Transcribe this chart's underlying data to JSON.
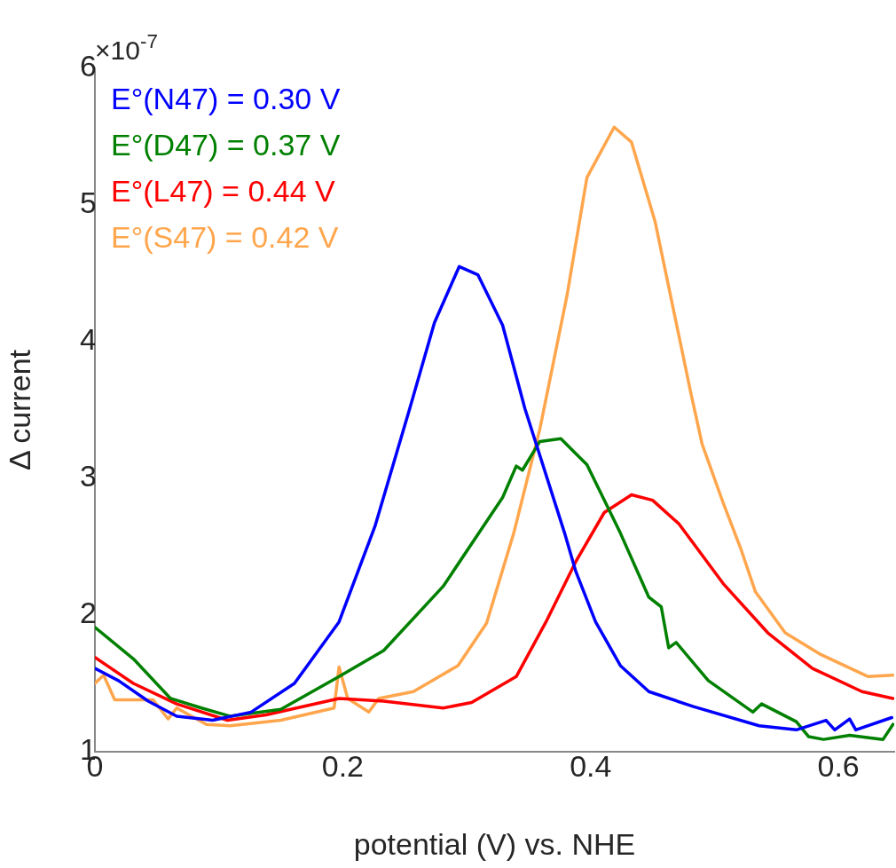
{
  "chart_data": {
    "type": "line",
    "xlabel": "potential (V) vs. NHE",
    "ylabel": "Δ current",
    "xlim": [
      0,
      0.645
    ],
    "xticks": [
      {
        "value": 0,
        "label": "0"
      },
      0.2,
      0.4,
      0.6
    ],
    "ylim": [
      1,
      6
    ],
    "yticks": [
      1,
      2,
      3,
      4,
      5,
      6
    ],
    "grid": false,
    "legend": "top left",
    "marker": "none",
    "line_style": "solid",
    "annotations": [
      "×10$^{-7}$"
    ],
    "series": [
      {
        "name": "E°(N47) = 0.30 V",
        "color": "#0000ff",
        "x": [
          0,
          0.019,
          0.043,
          0.066,
          0.095,
          0.126,
          0.161,
          0.197,
          0.226,
          0.254,
          0.274,
          0.294,
          0.309,
          0.329,
          0.347,
          0.379,
          0.388,
          0.404,
          0.424,
          0.447,
          0.483,
          0.536,
          0.566,
          0.59,
          0.597,
          0.609,
          0.614,
          0.643
        ],
        "values": [
          1.61,
          1.52,
          1.37,
          1.26,
          1.23,
          1.29,
          1.5,
          1.95,
          2.65,
          3.51,
          4.14,
          4.55,
          4.49,
          4.12,
          3.51,
          2.6,
          2.32,
          1.95,
          1.63,
          1.44,
          1.33,
          1.19,
          1.16,
          1.23,
          1.16,
          1.24,
          1.16,
          1.25
        ]
      },
      {
        "name": "E°(D47) = 0.37 V",
        "color": "#008000",
        "x": [
          0,
          0.031,
          0.061,
          0.086,
          0.109,
          0.15,
          0.197,
          0.233,
          0.281,
          0.329,
          0.34,
          0.345,
          0.359,
          0.376,
          0.397,
          0.424,
          0.447,
          0.457,
          0.463,
          0.469,
          0.495,
          0.531,
          0.538,
          0.566,
          0.576,
          0.588,
          0.609,
          0.636,
          0.644
        ],
        "values": [
          1.91,
          1.68,
          1.39,
          1.32,
          1.26,
          1.31,
          1.55,
          1.74,
          2.21,
          2.86,
          3.09,
          3.06,
          3.27,
          3.29,
          3.1,
          2.6,
          2.13,
          2.06,
          1.76,
          1.8,
          1.52,
          1.29,
          1.35,
          1.22,
          1.11,
          1.09,
          1.12,
          1.09,
          1.2
        ]
      },
      {
        "name": "E°(L47) = 0.44 V",
        "color": "#ff0000",
        "x": [
          0,
          0.031,
          0.066,
          0.107,
          0.138,
          0.197,
          0.233,
          0.281,
          0.304,
          0.34,
          0.364,
          0.388,
          0.411,
          0.433,
          0.45,
          0.471,
          0.507,
          0.543,
          0.579,
          0.619,
          0.644
        ],
        "values": [
          1.69,
          1.5,
          1.35,
          1.23,
          1.27,
          1.39,
          1.37,
          1.32,
          1.36,
          1.55,
          1.95,
          2.39,
          2.75,
          2.88,
          2.84,
          2.67,
          2.23,
          1.87,
          1.61,
          1.44,
          1.39
        ]
      },
      {
        "name": "E°(S47) = 0.42 V",
        "color": "#ffa64d",
        "x": [
          0,
          0.007,
          0.016,
          0.047,
          0.059,
          0.066,
          0.09,
          0.109,
          0.15,
          0.193,
          0.197,
          0.204,
          0.221,
          0.229,
          0.257,
          0.293,
          0.316,
          0.338,
          0.359,
          0.381,
          0.397,
          0.419,
          0.433,
          0.452,
          0.481,
          0.49,
          0.507,
          0.521,
          0.533,
          0.557,
          0.586,
          0.624,
          0.644
        ],
        "values": [
          1.5,
          1.56,
          1.38,
          1.38,
          1.24,
          1.32,
          1.2,
          1.19,
          1.23,
          1.32,
          1.62,
          1.39,
          1.29,
          1.39,
          1.44,
          1.63,
          1.94,
          2.6,
          3.36,
          4.34,
          5.2,
          5.57,
          5.46,
          4.88,
          3.62,
          3.25,
          2.82,
          2.49,
          2.17,
          1.87,
          1.71,
          1.55,
          1.56
        ]
      }
    ]
  }
}
